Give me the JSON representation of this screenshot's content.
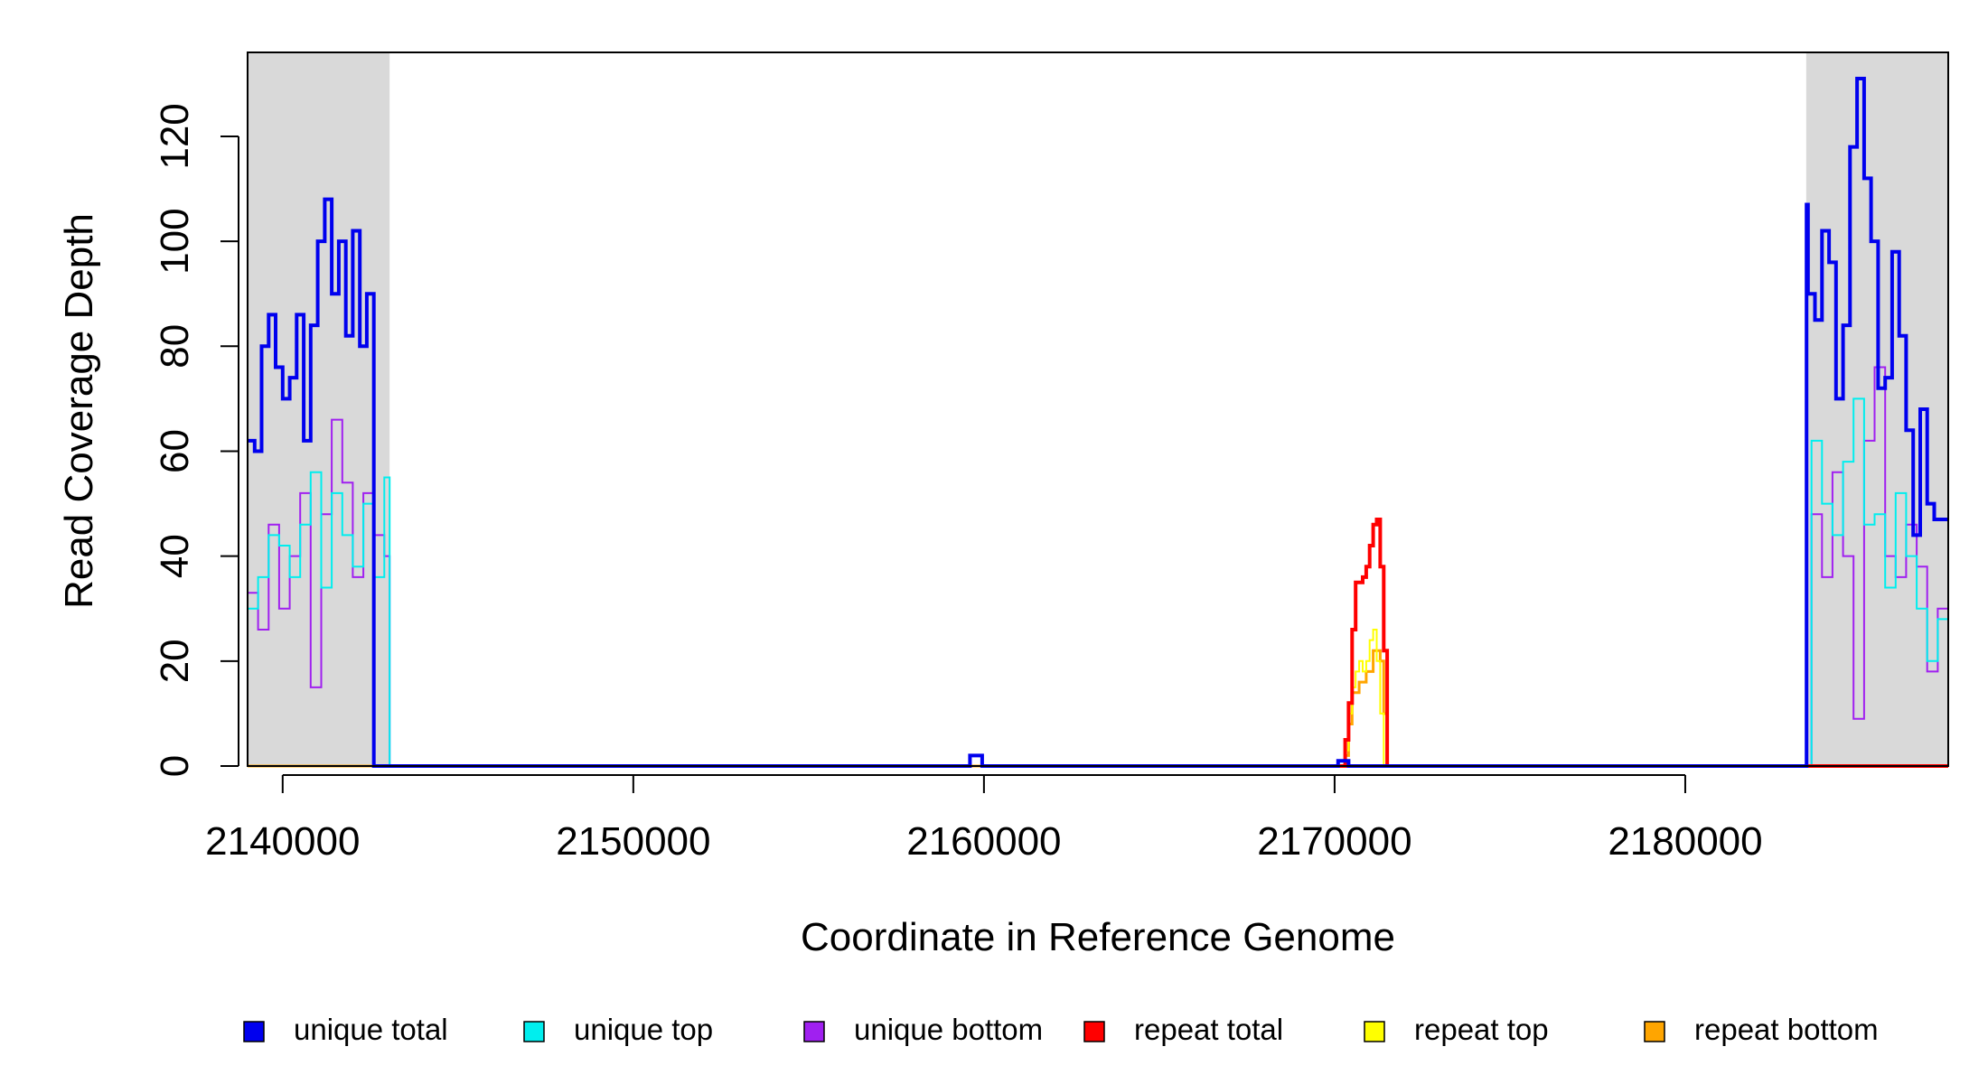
{
  "chart_data": {
    "type": "line",
    "title": "",
    "xlabel": "Coordinate in Reference Genome",
    "ylabel": "Read Coverage Depth",
    "xlim": [
      2139000,
      2187500
    ],
    "ylim": [
      0,
      136
    ],
    "x_ticks": [
      {
        "value": 2140000,
        "label": "2140000"
      },
      {
        "value": 2150000,
        "label": "2150000"
      },
      {
        "value": 2160000,
        "label": "2160000"
      },
      {
        "value": 2170000,
        "label": "2170000"
      },
      {
        "value": 2180000,
        "label": "2180000"
      }
    ],
    "y_ticks": [
      {
        "value": 0,
        "label": "0"
      },
      {
        "value": 20,
        "label": "20"
      },
      {
        "value": 40,
        "label": "40"
      },
      {
        "value": 60,
        "label": "60"
      },
      {
        "value": 80,
        "label": "80"
      },
      {
        "value": 100,
        "label": "100"
      },
      {
        "value": 120,
        "label": "120"
      }
    ],
    "grid": false,
    "legend_position": "bottom",
    "shaded_regions": [
      {
        "x0": 2139000,
        "x1": 2143050,
        "color": "#d9d9d9"
      },
      {
        "x0": 2183450,
        "x1": 2187500,
        "color": "#d9d9d9"
      }
    ],
    "series": [
      {
        "name": "unique total",
        "color": "#0000ee",
        "line_width": 4,
        "x": [
          2139000,
          2139200,
          2139400,
          2139600,
          2139800,
          2140000,
          2140200,
          2140400,
          2140600,
          2140800,
          2141000,
          2141200,
          2141400,
          2141600,
          2141800,
          2142000,
          2142200,
          2142400,
          2142600,
          2142800,
          2143000,
          2143050,
          2143060,
          2159550,
          2159600,
          2159800,
          2159950,
          2170050,
          2170100,
          2170300,
          2170400,
          2183450,
          2183460,
          2183500,
          2183700,
          2183900,
          2184100,
          2184300,
          2184500,
          2184700,
          2184900,
          2185100,
          2185300,
          2185500,
          2185700,
          2185900,
          2186100,
          2186300,
          2186500,
          2186700,
          2186900,
          2187100,
          2187300,
          2187500
        ],
        "y": [
          62,
          60,
          80,
          86,
          76,
          70,
          74,
          86,
          62,
          84,
          100,
          108,
          90,
          100,
          82,
          102,
          80,
          90,
          0,
          0,
          0,
          0,
          0,
          0,
          2,
          2,
          0,
          0,
          1,
          1,
          0,
          0,
          107,
          90,
          85,
          102,
          96,
          70,
          84,
          118,
          131,
          112,
          100,
          72,
          74,
          98,
          82,
          64,
          44,
          68,
          50,
          47,
          47,
          47
        ]
      },
      {
        "name": "unique top",
        "color": "#00eeee",
        "line_width": 2,
        "x": [
          2139000,
          2139300,
          2139600,
          2139900,
          2140200,
          2140500,
          2140800,
          2141100,
          2141400,
          2141700,
          2142000,
          2142300,
          2142600,
          2142900,
          2143050,
          2183450,
          2183600,
          2183900,
          2184200,
          2184500,
          2184800,
          2185100,
          2185400,
          2185700,
          2186000,
          2186300,
          2186600,
          2186900,
          2187200,
          2187500
        ],
        "y": [
          30,
          36,
          44,
          42,
          36,
          46,
          56,
          34,
          52,
          44,
          38,
          50,
          36,
          55,
          0,
          0,
          62,
          50,
          44,
          58,
          70,
          46,
          48,
          34,
          52,
          40,
          30,
          20,
          28,
          22
        ],
        "hide_zero_ends": true
      },
      {
        "name": "unique bottom",
        "color": "#a020f0",
        "line_width": 2,
        "x": [
          2139000,
          2139300,
          2139600,
          2139900,
          2140200,
          2140500,
          2140800,
          2141100,
          2141400,
          2141700,
          2142000,
          2142300,
          2142600,
          2142900,
          2143050,
          2183450,
          2183600,
          2183900,
          2184200,
          2184500,
          2184800,
          2185100,
          2185400,
          2185700,
          2186000,
          2186300,
          2186600,
          2186900,
          2187200,
          2187500
        ],
        "y": [
          33,
          26,
          46,
          30,
          40,
          52,
          15,
          48,
          66,
          54,
          36,
          52,
          44,
          40,
          0,
          0,
          48,
          36,
          56,
          40,
          9,
          62,
          76,
          40,
          36,
          46,
          38,
          18,
          30,
          26
        ],
        "hide_zero_ends": true
      },
      {
        "name": "repeat total",
        "color": "#ff0000",
        "line_width": 4,
        "x": [
          2170000,
          2170200,
          2170300,
          2170400,
          2170500,
          2170600,
          2170700,
          2170800,
          2170900,
          2171000,
          2171100,
          2171200,
          2171300,
          2171400,
          2171500,
          2187500
        ],
        "y": [
          0,
          0,
          5,
          12,
          26,
          35,
          35,
          36,
          38,
          42,
          46,
          47,
          38,
          22,
          0,
          0
        ]
      },
      {
        "name": "repeat top",
        "color": "#ffff00",
        "line_width": 2,
        "x": [
          2170200,
          2170300,
          2170400,
          2170500,
          2170600,
          2170700,
          2170800,
          2170900,
          2171000,
          2171100,
          2171200,
          2171300,
          2171400
        ],
        "y": [
          0,
          3,
          10,
          15,
          18,
          20,
          18,
          20,
          24,
          26,
          20,
          10,
          0
        ]
      },
      {
        "name": "repeat bottom",
        "color": "#ffa500",
        "line_width": 3,
        "x": [
          2139000,
          2143050,
          2170200,
          2170300,
          2170400,
          2170500,
          2170700,
          2170900,
          2171100,
          2171300,
          2171400,
          2171500,
          2183450,
          2187500
        ],
        "y": [
          0,
          0,
          0,
          2,
          8,
          14,
          16,
          18,
          22,
          20,
          10,
          0,
          0,
          0
        ]
      }
    ]
  },
  "legend": {
    "items": [
      {
        "label": "unique total",
        "color": "#0000ee"
      },
      {
        "label": "unique top",
        "color": "#00eeee"
      },
      {
        "label": "unique bottom",
        "color": "#a020f0"
      },
      {
        "label": "repeat total",
        "color": "#ff0000"
      },
      {
        "label": "repeat top",
        "color": "#ffff00"
      },
      {
        "label": "repeat bottom",
        "color": "#ffa500"
      }
    ]
  }
}
